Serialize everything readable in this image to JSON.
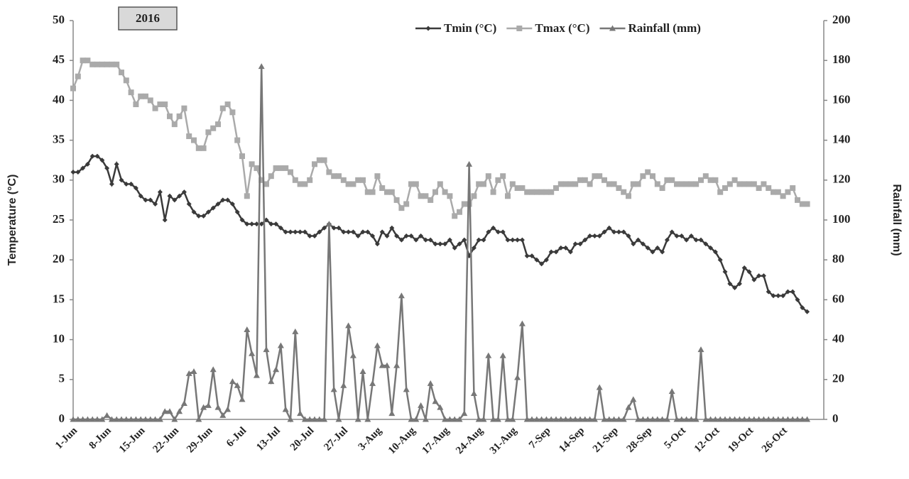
{
  "chart_data": {
    "type": "line",
    "annotation": "2016",
    "y_label": "Temperature (°C)",
    "y2_label": "Rainfall (mm)",
    "categories": [
      "1-Jun",
      null,
      null,
      null,
      null,
      null,
      null,
      "8-Jun",
      null,
      null,
      null,
      null,
      null,
      null,
      "15-Jun",
      null,
      null,
      null,
      null,
      null,
      null,
      "22-Jun",
      null,
      null,
      null,
      null,
      null,
      null,
      "29-Jun",
      null,
      null,
      null,
      null,
      null,
      null,
      "6-Jul",
      null,
      null,
      null,
      null,
      null,
      null,
      "13-Jul",
      null,
      null,
      null,
      null,
      null,
      null,
      "20-Jul",
      null,
      null,
      null,
      null,
      null,
      null,
      "27-Jul",
      null,
      null,
      null,
      null,
      null,
      null,
      "3-Aug",
      null,
      null,
      null,
      null,
      null,
      null,
      "10-Aug",
      null,
      null,
      null,
      null,
      null,
      null,
      "17-Aug",
      null,
      null,
      null,
      null,
      null,
      null,
      "24-Aug",
      null,
      null,
      null,
      null,
      null,
      null,
      "31-Aug",
      null,
      null,
      null,
      null,
      null,
      null,
      "7-Sep",
      null,
      null,
      null,
      null,
      null,
      null,
      "14-Sep",
      null,
      null,
      null,
      null,
      null,
      null,
      "21-Sep",
      null,
      null,
      null,
      null,
      null,
      null,
      "28-Sep",
      null,
      null,
      null,
      null,
      null,
      null,
      "5-Oct",
      null,
      null,
      null,
      null,
      null,
      null,
      "12-Oct",
      null,
      null,
      null,
      null,
      null,
      null,
      "19-Oct",
      null,
      null,
      null,
      null,
      null,
      null,
      "26-Oct",
      null,
      null,
      null,
      null,
      null
    ],
    "series": [
      {
        "name": "Tmin (°C)",
        "color": "#3a3a3a",
        "marker": "diamond",
        "axis": "y",
        "values": [
          31,
          31,
          31.5,
          32,
          33,
          33,
          32.5,
          31.5,
          29.5,
          32,
          30,
          29.5,
          29.5,
          29,
          28,
          27.5,
          27.5,
          27,
          28.5,
          25,
          28,
          27.5,
          28,
          28.5,
          27,
          26,
          25.5,
          25.5,
          26,
          26.5,
          27,
          27.5,
          27.5,
          27,
          26,
          25,
          24.5,
          24.5,
          24.5,
          24.5,
          25,
          24.5,
          24.5,
          24,
          23.5,
          23.5,
          23.5,
          23.5,
          23.5,
          23,
          23,
          23.5,
          24,
          24.5,
          24,
          24,
          23.5,
          23.5,
          23.5,
          23,
          23.5,
          23.5,
          23,
          22,
          23.5,
          23,
          24,
          23,
          22.5,
          23,
          23,
          22.5,
          23,
          22.5,
          22.5,
          22,
          22,
          22,
          22.5,
          21.5,
          22,
          22.5,
          20.5,
          21.5,
          22.5,
          22.5,
          23.5,
          24,
          23.5,
          23.5,
          22.5,
          22.5,
          22.5,
          22.5,
          20.5,
          20.5,
          20,
          19.5,
          20,
          21,
          21,
          21.5,
          21.5,
          21,
          22,
          22,
          22.5,
          23,
          23,
          23,
          23.5,
          24,
          23.5,
          23.5,
          23.5,
          23,
          22,
          22.5,
          22,
          21.5,
          21,
          21.5,
          21,
          22.5,
          23.5,
          23,
          23,
          22.5,
          23,
          22.5,
          22.5,
          22,
          21.5,
          21,
          20,
          18.5,
          17,
          16.5,
          17,
          19,
          18.5,
          17.5,
          18,
          18,
          16,
          15.5,
          15.5,
          15.5,
          16,
          16,
          15,
          14,
          13.5
        ]
      },
      {
        "name": "Tmax (°C)",
        "color": "#aaaaaa",
        "marker": "square",
        "axis": "y",
        "values": [
          41.5,
          43,
          45,
          45,
          44.5,
          44.5,
          44.5,
          44.5,
          44.5,
          44.5,
          43.5,
          42.5,
          41,
          39.5,
          40.5,
          40.5,
          40,
          39,
          39.5,
          39.5,
          38,
          37,
          38,
          39,
          35.5,
          35,
          34,
          34,
          36,
          36.5,
          37,
          39,
          39.5,
          38.5,
          35,
          33,
          28,
          32,
          31.5,
          30,
          29.5,
          30.5,
          31.5,
          31.5,
          31.5,
          31,
          30,
          29.5,
          29.5,
          30,
          32,
          32.5,
          32.5,
          31,
          30.5,
          30.5,
          30,
          29.5,
          29.5,
          30,
          30,
          28.5,
          28.5,
          30.5,
          29,
          28.5,
          28.5,
          27.5,
          26.5,
          27,
          29.5,
          29.5,
          28,
          28,
          27.5,
          28.5,
          29.5,
          28.5,
          28,
          25.5,
          26,
          27,
          27,
          28,
          29.5,
          29.5,
          30.5,
          28.5,
          30,
          30.5,
          28,
          29.5,
          29,
          29,
          28.5,
          28.5,
          28.5,
          28.5,
          28.5,
          28.5,
          29,
          29.5,
          29.5,
          29.5,
          29.5,
          30,
          30,
          29.5,
          30.5,
          30.5,
          30,
          29.5,
          29.5,
          29,
          28.5,
          28,
          29.5,
          29.5,
          30.5,
          31,
          30.5,
          29.5,
          29,
          30,
          30,
          29.5,
          29.5,
          29.5,
          29.5,
          29.5,
          30,
          30.5,
          30,
          30,
          28.5,
          29,
          29.5,
          30,
          29.5,
          29.5,
          29.5,
          29.5,
          29,
          29.5,
          29,
          28.5,
          28.5,
          28,
          28.5,
          29,
          27.5,
          27,
          27
        ]
      },
      {
        "name": "Rainfall (mm)",
        "color": "#777777",
        "marker": "triangle",
        "axis": "y2",
        "values": [
          0,
          0,
          0,
          0,
          0,
          0,
          0,
          2,
          0,
          0,
          0,
          0,
          0,
          0,
          0,
          0,
          0,
          0,
          0,
          4,
          4,
          0,
          4,
          8,
          23,
          24,
          0,
          6,
          7,
          25,
          6,
          2,
          5,
          19,
          17,
          10,
          45,
          33,
          22,
          177,
          35,
          19,
          25,
          37,
          5,
          0,
          44,
          3,
          0,
          0,
          0,
          0,
          0,
          98,
          15,
          0,
          17,
          47,
          32,
          0,
          24,
          0,
          18,
          37,
          27,
          27,
          3,
          27,
          62,
          15,
          0,
          0,
          7,
          0,
          18,
          9,
          6,
          0,
          0,
          0,
          0,
          3,
          128,
          13,
          0,
          0,
          32,
          0,
          0,
          32,
          0,
          0,
          21,
          48,
          0,
          0,
          0,
          0,
          0,
          0,
          0,
          0,
          0,
          0,
          0,
          0,
          0,
          0,
          0,
          16,
          0,
          0,
          0,
          0,
          0,
          6,
          10,
          0,
          0,
          0,
          0,
          0,
          0,
          0,
          14,
          0,
          0,
          0,
          0,
          0,
          35,
          0,
          0,
          0,
          0,
          0,
          0,
          0,
          0,
          0,
          0,
          0,
          0,
          0,
          0,
          0,
          0,
          0,
          0,
          0,
          0,
          0,
          0
        ]
      }
    ],
    "ylim": [
      0,
      50
    ],
    "yticks": [
      0,
      5,
      10,
      15,
      20,
      25,
      30,
      35,
      40,
      45,
      50
    ],
    "y2lim": [
      0,
      200
    ],
    "y2ticks": [
      0,
      20,
      40,
      60,
      80,
      100,
      120,
      140,
      160,
      180,
      200
    ],
    "grid": false,
    "legend": "top-right"
  }
}
